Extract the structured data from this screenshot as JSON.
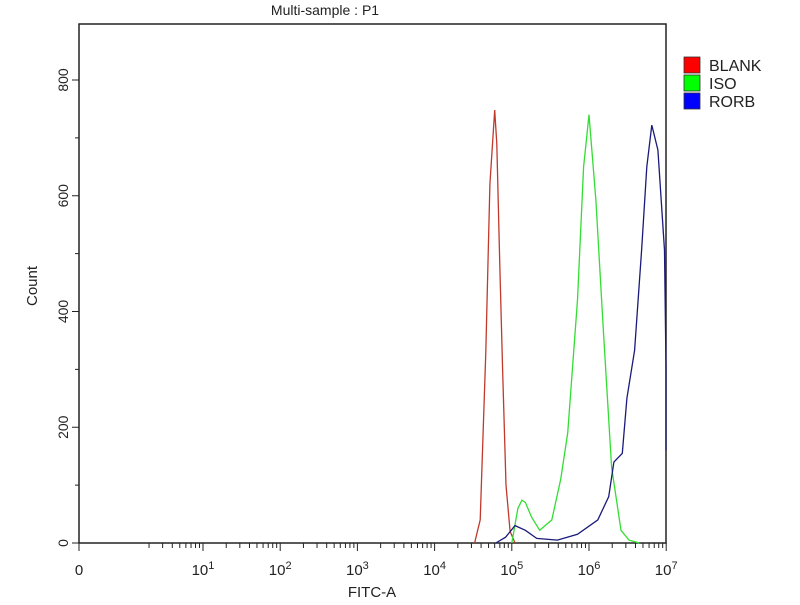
{
  "chart_data": {
    "type": "line",
    "title": "Multi-sample : P1",
    "xlabel": "FITC-A",
    "ylabel": "Count",
    "x_scale": "log (with 0)",
    "xlim": [
      0,
      10000000
    ],
    "ylim": [
      0,
      890
    ],
    "x_tick_labels": [
      {
        "value": 0,
        "base": "0",
        "exp": ""
      },
      {
        "value": 10,
        "base": "10",
        "exp": "1"
      },
      {
        "value": 100,
        "base": "10",
        "exp": "2"
      },
      {
        "value": 1000,
        "base": "10",
        "exp": "3"
      },
      {
        "value": 10000,
        "base": "10",
        "exp": "4"
      },
      {
        "value": 100000,
        "base": "10",
        "exp": "5"
      },
      {
        "value": 1000000,
        "base": "10",
        "exp": "6"
      },
      {
        "value": 10000000,
        "base": "10",
        "exp": "7"
      }
    ],
    "y_ticks": [
      0,
      200,
      400,
      600,
      800
    ],
    "grid": false,
    "legend_position": "right",
    "series": [
      {
        "name": "BLANK",
        "color": "#c0392b",
        "legend_color": "#ff0000",
        "points": [
          [
            33000,
            0
          ],
          [
            39000,
            40
          ],
          [
            46000,
            330
          ],
          [
            52000,
            620
          ],
          [
            60000,
            748
          ],
          [
            64000,
            690
          ],
          [
            70000,
            480
          ],
          [
            76000,
            300
          ],
          [
            84000,
            100
          ],
          [
            95000,
            20
          ],
          [
            110000,
            0
          ]
        ]
      },
      {
        "name": "ISO",
        "color": "#33dd33",
        "legend_color": "#00ff00",
        "points": [
          [
            100000,
            0
          ],
          [
            120000,
            60
          ],
          [
            135000,
            74
          ],
          [
            150000,
            70
          ],
          [
            180000,
            45
          ],
          [
            230000,
            22
          ],
          [
            330000,
            40
          ],
          [
            430000,
            110
          ],
          [
            530000,
            190
          ],
          [
            710000,
            420
          ],
          [
            850000,
            650
          ],
          [
            1000000,
            740
          ],
          [
            1230000,
            592
          ],
          [
            1540000,
            363
          ],
          [
            1960000,
            131
          ],
          [
            2600000,
            22
          ],
          [
            3300000,
            5
          ],
          [
            4500000,
            0
          ]
        ]
      },
      {
        "name": "RORB",
        "color": "#1a1a7a",
        "legend_color": "#0000ff",
        "points": [
          [
            62000,
            0
          ],
          [
            83000,
            10
          ],
          [
            110000,
            30
          ],
          [
            150000,
            22
          ],
          [
            210000,
            8
          ],
          [
            390000,
            5
          ],
          [
            710000,
            15
          ],
          [
            1300000,
            40
          ],
          [
            1800000,
            80
          ],
          [
            2100000,
            140
          ],
          [
            2700000,
            155
          ],
          [
            3100000,
            250
          ],
          [
            3900000,
            333
          ],
          [
            4800000,
            506
          ],
          [
            5600000,
            650
          ],
          [
            6500000,
            722
          ],
          [
            7800000,
            679
          ],
          [
            9500000,
            506
          ],
          [
            11200000,
            304
          ],
          [
            12500000,
            240
          ],
          [
            13000000,
            160
          ]
        ]
      }
    ]
  }
}
